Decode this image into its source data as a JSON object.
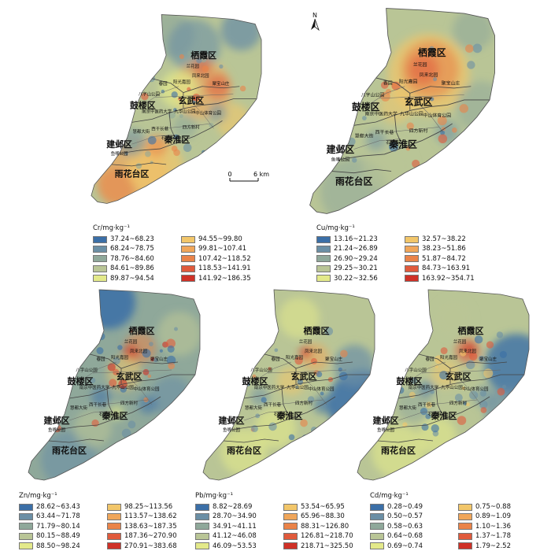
{
  "colors": {
    "c1": "#3b6fa7",
    "c2": "#6b8fa5",
    "c3": "#8fa89a",
    "c4": "#b9c596",
    "c5": "#e3e98a",
    "c6": "#f2c66a",
    "c7": "#f0a65a",
    "c8": "#ea8349",
    "c9": "#e05a3c",
    "c10": "#cf3127"
  },
  "north_label": "N",
  "scale": {
    "zero": "0",
    "distance": "6 km"
  },
  "districts": [
    "栖霞区",
    "玄武区",
    "鼓楼区",
    "建邺区",
    "秦淮区",
    "雨花台区"
  ],
  "places": [
    "兰花园",
    "凤来北园",
    "阳光嘉园",
    "聚宝山庄",
    "春园",
    "八字山公园",
    "九华山公园",
    "南京中医药大学",
    "中山体育公园",
    "慧都大街",
    "西干长巷",
    "四方新村",
    "鱼嘴公园",
    "石门街",
    "秦淮"
  ],
  "maps": [
    {
      "id": "cr",
      "legend_title": "Cr/mg·kg⁻¹",
      "base_color": "c4",
      "ranges": [
        "37.24~68.23",
        "68.24~78.75",
        "78.76~84.60",
        "84.61~89.86",
        "89.87~94.54",
        "94.55~99.80",
        "99.81~107.41",
        "107.42~118.52",
        "118.53~141.91",
        "141.92~186.35"
      ]
    },
    {
      "id": "cu",
      "legend_title": "Cu/mg·kg⁻¹",
      "base_color": "c4",
      "ranges": [
        "13.16~21.23",
        "21.24~26.89",
        "26.90~29.24",
        "29.25~30.21",
        "30.22~32.56",
        "32.57~38.22",
        "38.23~51.86",
        "51.87~84.72",
        "84.73~163.91",
        "163.92~354.71"
      ]
    },
    {
      "id": "zn",
      "legend_title": "Zn/mg·kg⁻¹",
      "base_color": "c3",
      "ranges": [
        "28.62~63.43",
        "63.44~71.78",
        "71.79~80.14",
        "80.15~88.49",
        "88.50~98.24",
        "98.25~113.56",
        "113.57~138.62",
        "138.63~187.35",
        "187.36~270.90",
        "270.91~383.68"
      ]
    },
    {
      "id": "pb",
      "legend_title": "Pb/mg·kg⁻¹",
      "base_color": "c4",
      "ranges": [
        "8.82~28.69",
        "28.70~34.90",
        "34.91~41.11",
        "41.12~46.08",
        "46.09~53.53",
        "53.54~65.95",
        "65.96~88.30",
        "88.31~126.80",
        "126.81~218.70",
        "218.71~325.50"
      ]
    },
    {
      "id": "cd",
      "legend_title": "Cd/mg·kg⁻¹",
      "base_color": "c4",
      "ranges": [
        "0.28~0.49",
        "0.50~0.57",
        "0.58~0.63",
        "0.64~0.68",
        "0.69~0.74",
        "0.75~0.88",
        "0.89~1.09",
        "1.10~1.36",
        "1.37~1.78",
        "1.79~2.52"
      ]
    }
  ]
}
